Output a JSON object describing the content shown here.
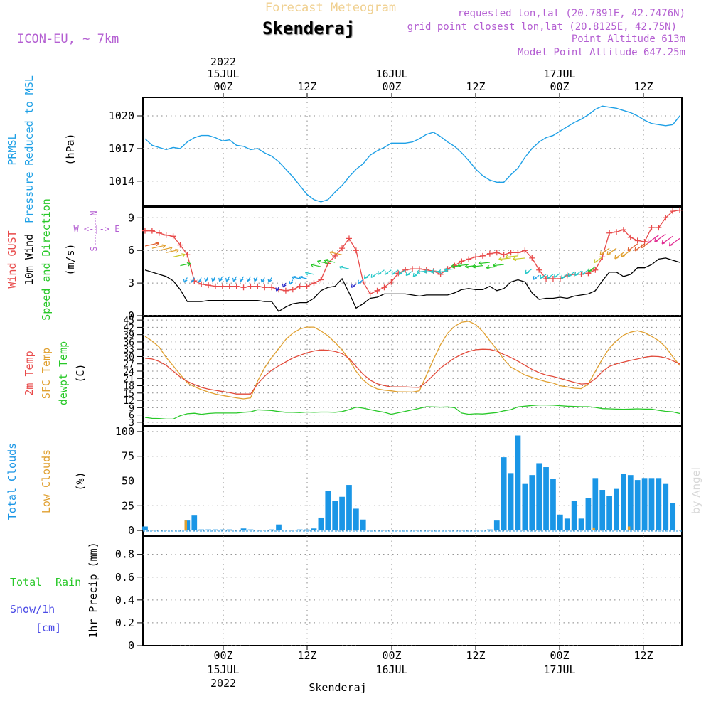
{
  "header": {
    "title": "Forecast Meteogram",
    "location": "Skenderaj",
    "model": "ICON-EU, ~ 7km",
    "requested": "requested lon,lat (20.7891E, 42.7476N)",
    "gridpoint": "grid point closest lon,lat (20.8125E, 42.75N)",
    "point_alt": "Point Altitude 613m",
    "model_alt": "Model Point Altitude 647.25m",
    "footer": "Skenderaj",
    "watermark": "by Angel"
  },
  "time_axis": {
    "top_year": "2022",
    "dates": [
      "15JUL",
      "16JUL",
      "17JUL"
    ],
    "hours": [
      "00Z",
      "12Z",
      "00Z",
      "12Z",
      "00Z",
      "12Z"
    ],
    "bottom_year": "2022",
    "start": "2022-07-14 13Z",
    "end": "2022-07-17 17Z"
  },
  "panels": {
    "pressure": {
      "label1": "PRMSL",
      "label2": "Pressure Reduced to MSL",
      "unit": "(hPa)",
      "ticks": [
        "1014",
        "1017",
        "1020"
      ]
    },
    "wind": {
      "label1": "Wind GUST",
      "label2": "10m Wind",
      "label3": "Speed and Direction",
      "unit": "(m/s)",
      "ticks": [
        "0",
        "3",
        "6",
        "9"
      ],
      "compass_n": "N",
      "compass_s": "S",
      "compass_we": "W <-|-> E"
    },
    "temp": {
      "label1": "2m Temp",
      "label2": "SFC Temp",
      "label3": "dewpt Temp",
      "unit": "(C)",
      "ticks": [
        "3",
        "6",
        "9",
        "12",
        "15",
        "18",
        "21",
        "24",
        "27",
        "30",
        "33",
        "36",
        "39",
        "42",
        "45"
      ]
    },
    "clouds": {
      "label1": "Total Clouds",
      "label2": "Low Clouds",
      "unit": "(%)",
      "ticks": [
        "0",
        "25",
        "50",
        "75",
        "100"
      ]
    },
    "precip": {
      "label1": "Total",
      "label1b": "Rain",
      "label2": "Snow/1h",
      "label3": "[cm]",
      "unit": "1hr Precip (mm)",
      "ticks": [
        "0",
        "0.2",
        "0.4",
        "0.6",
        "0.8"
      ]
    }
  },
  "colors": {
    "pressure": "#1ea0e6",
    "gust": "#e84a4a",
    "wind": "#000000",
    "t2m": "#e24a3a",
    "sfc": "#e0a030",
    "dew": "#28c828",
    "clouds": "#1a96e6",
    "low_clouds": "#e0a030",
    "rain_label": "#28c828",
    "snow_label": "#4a4ae6",
    "purple": "#b45fd2",
    "title_faint": "#f0d090"
  },
  "chart_data": [
    {
      "type": "line",
      "title": "PRMSL Pressure Reduced to MSL",
      "ylabel": "(hPa)",
      "ylim": [
        1011.7,
        1021.7
      ],
      "x_hours": [
        0,
        1,
        2,
        3,
        4,
        5,
        6,
        7,
        8,
        9,
        10,
        11,
        12,
        13,
        14,
        15,
        16,
        17,
        18,
        19,
        20,
        21,
        22,
        23,
        24,
        25,
        26,
        27,
        28,
        29,
        30,
        31,
        32,
        33,
        34,
        35,
        36,
        37,
        38,
        39,
        40,
        41,
        42,
        43,
        44,
        45,
        46,
        47,
        48,
        49,
        50,
        51,
        52,
        53,
        54,
        55,
        56,
        57,
        58,
        59,
        60,
        61,
        62,
        63,
        64,
        65,
        66,
        67,
        68,
        69,
        70,
        71,
        72,
        73,
        74,
        75,
        76
      ],
      "values": [
        1017.9,
        1017.3,
        1017.1,
        1016.9,
        1017.1,
        1017.0,
        1017.6,
        1018.0,
        1018.2,
        1018.2,
        1018.0,
        1017.7,
        1017.8,
        1017.3,
        1017.2,
        1016.9,
        1017.0,
        1016.6,
        1016.3,
        1015.8,
        1015.1,
        1014.4,
        1013.6,
        1012.8,
        1012.3,
        1012.1,
        1012.3,
        1013.0,
        1013.6,
        1014.4,
        1015.1,
        1015.6,
        1016.4,
        1016.8,
        1017.1,
        1017.5,
        1017.5,
        1017.5,
        1017.6,
        1017.9,
        1018.3,
        1018.5,
        1018.1,
        1017.6,
        1017.2,
        1016.6,
        1015.9,
        1015.1,
        1014.5,
        1014.1,
        1013.9,
        1013.9,
        1014.6,
        1015.2,
        1016.2,
        1017.0,
        1017.6,
        1018.0,
        1018.2,
        1018.6,
        1019.0,
        1019.4,
        1019.7,
        1020.1,
        1020.6,
        1020.9,
        1020.8,
        1020.7,
        1020.5,
        1020.3,
        1020.0,
        1019.6,
        1019.3,
        1019.2,
        1019.1,
        1019.2,
        1020.0
      ]
    },
    {
      "type": "line",
      "title": "Wind GUST / 10m Wind Speed and Direction",
      "ylabel": "(m/s)",
      "ylim": [
        0,
        10
      ],
      "x_hours": [
        0,
        1,
        2,
        3,
        4,
        5,
        6,
        7,
        8,
        9,
        10,
        11,
        12,
        13,
        14,
        15,
        16,
        17,
        18,
        19,
        20,
        21,
        22,
        23,
        24,
        25,
        26,
        27,
        28,
        29,
        30,
        31,
        32,
        33,
        34,
        35,
        36,
        37,
        38,
        39,
        40,
        41,
        42,
        43,
        44,
        45,
        46,
        47,
        48,
        49,
        50,
        51,
        52,
        53,
        54,
        55,
        56,
        57,
        58,
        59,
        60,
        61,
        62,
        63,
        64,
        65,
        66,
        67,
        68,
        69,
        70,
        71,
        72,
        73,
        74,
        75,
        76
      ],
      "series": [
        {
          "name": "Wind GUST",
          "values": [
            7.8,
            7.8,
            7.6,
            7.4,
            7.3,
            6.5,
            5.6,
            3.2,
            2.9,
            2.8,
            2.7,
            2.7,
            2.7,
            2.7,
            2.6,
            2.7,
            2.7,
            2.6,
            2.6,
            2.4,
            2.3,
            2.4,
            2.7,
            2.7,
            3.0,
            3.3,
            4.8,
            5.5,
            6.2,
            7.1,
            6.0,
            3.1,
            2.0,
            2.3,
            2.6,
            3.1,
            3.9,
            4.2,
            4.3,
            4.3,
            4.2,
            4.1,
            3.8,
            4.3,
            4.6,
            5.0,
            5.2,
            5.4,
            5.5,
            5.7,
            5.8,
            5.6,
            5.8,
            5.8,
            6.0,
            5.3,
            4.2,
            3.4,
            3.4,
            3.4,
            3.7,
            3.8,
            3.8,
            3.9,
            4.2,
            5.4,
            7.6,
            7.7,
            7.9,
            7.2,
            6.9,
            6.8,
            8.1,
            8.1,
            9.0,
            9.6,
            9.7
          ]
        },
        {
          "name": "10m Wind",
          "values": [
            4.2,
            4.0,
            3.8,
            3.6,
            3.2,
            2.4,
            1.3,
            1.3,
            1.3,
            1.4,
            1.4,
            1.4,
            1.4,
            1.4,
            1.4,
            1.4,
            1.4,
            1.3,
            1.3,
            0.4,
            0.8,
            1.1,
            1.2,
            1.2,
            1.6,
            2.3,
            2.6,
            2.7,
            3.4,
            2.1,
            0.7,
            1.1,
            1.6,
            1.7,
            2.0,
            2.0,
            2.0,
            2.0,
            1.9,
            1.8,
            1.9,
            1.9,
            1.9,
            1.9,
            2.1,
            2.4,
            2.5,
            2.4,
            2.4,
            2.7,
            2.3,
            2.5,
            3.1,
            3.3,
            3.1,
            2.1,
            1.5,
            1.6,
            1.6,
            1.7,
            1.6,
            1.8,
            1.9,
            2.0,
            2.3,
            3.2,
            4.0,
            4.0,
            3.6,
            3.8,
            4.4,
            4.4,
            4.7,
            5.2,
            5.3,
            5.1,
            4.9
          ]
        }
      ]
    },
    {
      "type": "line",
      "title": "2m Temp / SFC Temp / dewpt Temp",
      "ylabel": "(C)",
      "ylim": [
        1.5,
        46.5
      ],
      "x_hours": [
        0,
        1,
        2,
        3,
        4,
        5,
        6,
        7,
        8,
        9,
        10,
        11,
        12,
        13,
        14,
        15,
        16,
        17,
        18,
        19,
        20,
        21,
        22,
        23,
        24,
        25,
        26,
        27,
        28,
        29,
        30,
        31,
        32,
        33,
        34,
        35,
        36,
        37,
        38,
        39,
        40,
        41,
        42,
        43,
        44,
        45,
        46,
        47,
        48,
        49,
        50,
        51,
        52,
        53,
        54,
        55,
        56,
        57,
        58,
        59,
        60,
        61,
        62,
        63,
        64,
        65,
        66,
        67,
        68,
        69,
        70,
        71,
        72,
        73,
        74,
        75,
        76
      ],
      "series": [
        {
          "name": "2m Temp",
          "values": [
            29.3,
            29.0,
            28.0,
            26.4,
            24.0,
            21.6,
            19.8,
            18.5,
            17.3,
            16.6,
            16.1,
            15.6,
            15.2,
            14.6,
            14.6,
            14.6,
            18.8,
            21.9,
            24.4,
            26.2,
            27.8,
            29.4,
            30.5,
            31.5,
            32.3,
            32.7,
            32.6,
            32.1,
            31.2,
            29.2,
            25.9,
            22.7,
            20.3,
            18.8,
            18.1,
            17.5,
            17.5,
            17.5,
            17.4,
            17.3,
            19.6,
            22.4,
            25.3,
            27.4,
            29.4,
            30.9,
            32.1,
            32.8,
            33.0,
            32.9,
            32.2,
            30.8,
            29.6,
            28.1,
            26.4,
            24.7,
            23.4,
            22.4,
            21.8,
            21.0,
            20.2,
            19.4,
            18.7,
            18.9,
            20.9,
            23.8,
            26.0,
            27.0,
            27.7,
            28.4,
            29.0,
            29.7,
            30.1,
            30.0,
            29.5,
            28.3,
            26.9
          ]
        },
        {
          "name": "SFC Temp",
          "values": [
            38.3,
            36.4,
            33.9,
            29.6,
            26.2,
            22.6,
            19.2,
            17.6,
            16.4,
            15.4,
            14.6,
            14.0,
            13.5,
            13.0,
            12.6,
            13.0,
            19.9,
            25.4,
            29.6,
            33.2,
            37.0,
            39.6,
            41.3,
            42.1,
            42.1,
            40.5,
            38.5,
            35.8,
            32.7,
            28.8,
            23.9,
            20.4,
            18.0,
            16.7,
            16.2,
            15.9,
            15.5,
            15.5,
            15.4,
            15.9,
            22.3,
            28.8,
            34.9,
            39.6,
            42.4,
            44.1,
            44.5,
            43.1,
            40.3,
            36.5,
            32.9,
            28.8,
            25.6,
            24.1,
            22.4,
            21.5,
            20.5,
            19.7,
            19.1,
            18.0,
            17.5,
            17.0,
            16.8,
            18.7,
            23.9,
            29.0,
            33.5,
            36.4,
            38.8,
            40.0,
            40.6,
            39.8,
            38.3,
            36.5,
            33.9,
            29.9,
            26.3
          ]
        },
        {
          "name": "dewpt Temp",
          "values": [
            5.0,
            4.6,
            4.5,
            4.3,
            4.3,
            5.7,
            6.5,
            6.7,
            6.3,
            6.6,
            6.8,
            6.8,
            6.8,
            6.8,
            7.1,
            7.3,
            8.1,
            8.0,
            7.8,
            7.4,
            7.1,
            7.1,
            7.0,
            7.2,
            7.1,
            7.2,
            7.2,
            7.1,
            7.4,
            8.2,
            9.2,
            8.8,
            8.2,
            7.6,
            7.1,
            6.3,
            6.9,
            7.5,
            8.1,
            8.7,
            9.4,
            9.3,
            9.2,
            9.3,
            9.0,
            6.8,
            6.3,
            6.5,
            6.4,
            6.7,
            7.0,
            7.7,
            8.2,
            9.3,
            9.6,
            9.9,
            10.1,
            10.1,
            10.0,
            9.8,
            9.6,
            9.5,
            9.4,
            9.4,
            9.1,
            8.6,
            8.5,
            8.4,
            8.3,
            8.4,
            8.5,
            8.4,
            8.4,
            7.9,
            7.5,
            7.3,
            6.6
          ]
        }
      ]
    },
    {
      "type": "bar",
      "title": "Total Clouds / Low Clouds",
      "ylabel": "(%)",
      "ylim": [
        -5,
        105
      ],
      "x_hours": [
        0,
        1,
        2,
        3,
        4,
        5,
        6,
        7,
        8,
        9,
        10,
        11,
        12,
        13,
        14,
        15,
        16,
        17,
        18,
        19,
        20,
        21,
        22,
        23,
        24,
        25,
        26,
        27,
        28,
        29,
        30,
        31,
        32,
        33,
        34,
        35,
        36,
        37,
        38,
        39,
        40,
        41,
        42,
        43,
        44,
        45,
        46,
        47,
        48,
        49,
        50,
        51,
        52,
        53,
        54,
        55,
        56,
        57,
        58,
        59,
        60,
        61,
        62,
        63,
        64,
        65,
        66,
        67,
        68,
        69,
        70,
        71,
        72,
        73,
        74,
        75,
        76
      ],
      "series": [
        {
          "name": "Total Clouds",
          "values": [
            4,
            0,
            0,
            0,
            0,
            0,
            10,
            15,
            1,
            1,
            1,
            1,
            1,
            0,
            2,
            1,
            0,
            0,
            1,
            6,
            0,
            0,
            1,
            1,
            2,
            13,
            40,
            30,
            34,
            46,
            22,
            11,
            0,
            0,
            0,
            0,
            0,
            0,
            0,
            0,
            0,
            0,
            0,
            0,
            0,
            0,
            0,
            0,
            0,
            1,
            10,
            74,
            58,
            96,
            47,
            56,
            68,
            64,
            52,
            16,
            12,
            30,
            12,
            33,
            53,
            41,
            35,
            42,
            57,
            56,
            51,
            53,
            53,
            53,
            47,
            28,
            0
          ]
        },
        {
          "name": "Low Clouds",
          "values": [
            0,
            0,
            0,
            0,
            0,
            0,
            10,
            0,
            0,
            0,
            0,
            0,
            0,
            0,
            0,
            0,
            0,
            0,
            0,
            0,
            0,
            0,
            0,
            0,
            0,
            0,
            0,
            0,
            0,
            0,
            0,
            0,
            0,
            0,
            0,
            0,
            0,
            0,
            0,
            0,
            0,
            0,
            0,
            0,
            0,
            0,
            0,
            0,
            0,
            0,
            0,
            0,
            0,
            0,
            0,
            0,
            0,
            0,
            0,
            0,
            0,
            0,
            0,
            0,
            3,
            0,
            0,
            0,
            0,
            4,
            0,
            0,
            0,
            0,
            0,
            0,
            0
          ]
        }
      ]
    },
    {
      "type": "bar",
      "title": "1hr Precip (mm)",
      "ylabel": "1hr Precip (mm)",
      "ylim": [
        0,
        0.96
      ],
      "series": [
        {
          "name": "Total Rain",
          "values": [
            0
          ]
        }
      ]
    }
  ]
}
